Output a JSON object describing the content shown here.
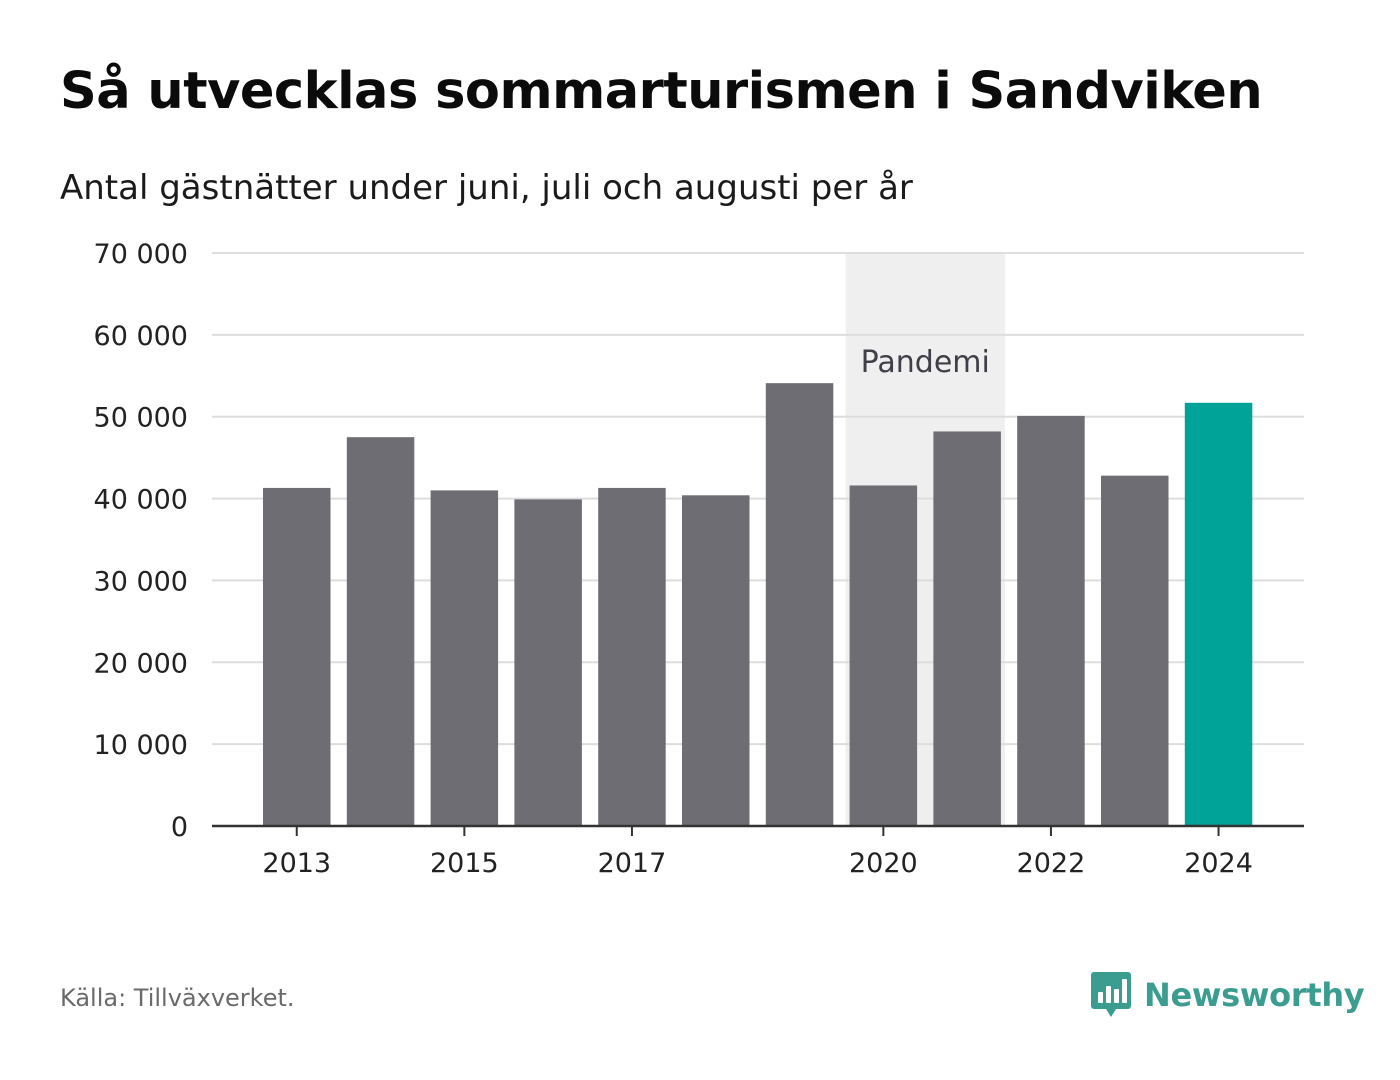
{
  "header": {
    "title": "Så utvecklas sommarturismen i Sandviken",
    "subtitle": "Antal gästnätter under juni, juli och augusti per år"
  },
  "footer": {
    "source": "Källa: Tillväxverket.",
    "brand": "Newsworthy",
    "brand_icon": "bar-chart-speech-bubble-icon"
  },
  "colors": {
    "bar": "#6e6d74",
    "highlight": "#00a398",
    "pandemic_band": "#efefef",
    "gridline": "#dddddd",
    "axis": "#333333",
    "brand": "#3a9d8f"
  },
  "chart_data": {
    "type": "bar",
    "categories": [
      "2013",
      "2014",
      "2015",
      "2016",
      "2017",
      "2018",
      "2019",
      "2020",
      "2021",
      "2022",
      "2023",
      "2024"
    ],
    "values": [
      41300,
      47500,
      41000,
      39900,
      41300,
      40400,
      54100,
      41600,
      48200,
      50100,
      42800,
      51700
    ],
    "highlight_category": "2024",
    "ylim": [
      0,
      70000
    ],
    "yticks": [
      0,
      10000,
      20000,
      30000,
      40000,
      50000,
      60000,
      70000
    ],
    "ytick_labels": [
      "0",
      "10 000",
      "20 000",
      "30 000",
      "40 000",
      "50 000",
      "60 000",
      "70 000"
    ],
    "xtick_labels": [
      "2013",
      "2015",
      "2017",
      "2020",
      "2022",
      "2024"
    ],
    "grid": true,
    "annotations": [
      {
        "label": "Pandemi",
        "from": "2020",
        "to": "2021"
      }
    ]
  }
}
